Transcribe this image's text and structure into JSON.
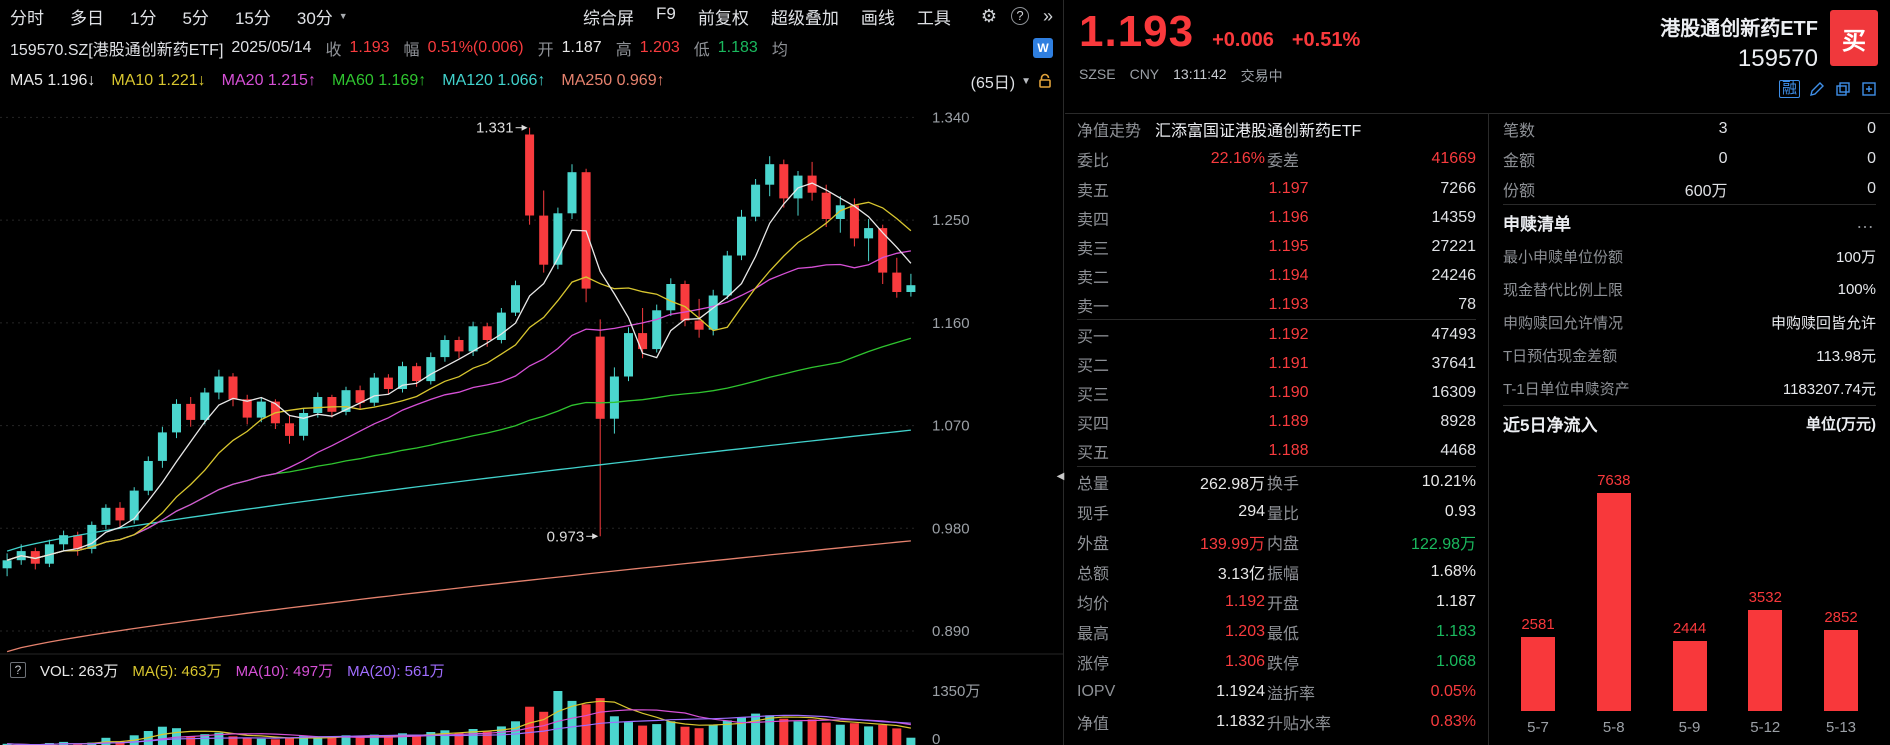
{
  "palette": {
    "bg": "#000000",
    "red": "#f83b3e",
    "green": "#1ab95e",
    "white": "#e8e8e8",
    "gray": "#8e9196",
    "yellow": "#d8c62f",
    "magenta": "#d650d6",
    "ma60": "#2fc42f",
    "cyan": "#41d2cc",
    "salmon": "#e5826e",
    "purple": "#a06dff",
    "blue": "#3f8fe8",
    "orange": "#e2a33b",
    "up": "#4bd6ce",
    "down": "#f83b3e",
    "divider": "#2a2a2a"
  },
  "icons": {
    "gear": "⚙",
    "help": "?",
    "more": "»",
    "caret": "▼",
    "caret_down": "▼",
    "dots": "…",
    "wp": "W",
    "collapse": "◀"
  },
  "toolbar": {
    "period_tabs": [
      "分时",
      "多日",
      "1分",
      "5分",
      "15分",
      "30分"
    ],
    "menu_items": [
      "综合屏",
      "F9",
      "前复权",
      "超级叠加",
      "画线",
      "工具"
    ]
  },
  "stock_line": {
    "symbol": "159570.SZ[港股通创新药ETF]",
    "date": "2025/05/14",
    "fields": [
      {
        "label": "收",
        "value": "1.193",
        "color": "red"
      },
      {
        "label": "幅",
        "value": "0.51%(0.006)",
        "color": "red"
      },
      {
        "label": "开",
        "value": "1.187",
        "color": "white"
      },
      {
        "label": "高",
        "value": "1.203",
        "color": "red"
      },
      {
        "label": "低",
        "value": "1.183",
        "color": "green"
      },
      {
        "label": "均",
        "value": "",
        "color": "gray"
      }
    ]
  },
  "ma_legend": {
    "period_label": "(65日)",
    "items": [
      {
        "label": "MA5",
        "value": "1.196",
        "arrow": "↓",
        "color": "white"
      },
      {
        "label": "MA10",
        "value": "1.221",
        "arrow": "↓",
        "color": "yellow"
      },
      {
        "label": "MA20",
        "value": "1.215",
        "arrow": "↑",
        "color": "magenta"
      },
      {
        "label": "MA60",
        "value": "1.169",
        "arrow": "↑",
        "color": "ma60"
      },
      {
        "label": "MA120",
        "value": "1.066",
        "arrow": "↑",
        "color": "cyan"
      },
      {
        "label": "MA250",
        "value": "0.969",
        "arrow": "↑",
        "color": "salmon"
      }
    ]
  },
  "vol_legend": {
    "help_icon": "?",
    "items": [
      {
        "label": "VOL:",
        "value": "263万",
        "color": "white"
      },
      {
        "label": "MA(5):",
        "value": "463万",
        "color": "yellow"
      },
      {
        "label": "MA(10):",
        "value": "497万",
        "color": "magenta"
      },
      {
        "label": "MA(20):",
        "value": "561万",
        "color": "purple"
      }
    ]
  },
  "quote_header": {
    "price": "1.193",
    "change": "+0.006",
    "change_pct": "+0.51%",
    "exchange": "SZSE",
    "currency": "CNY",
    "time": "13:11:42",
    "status": "交易中",
    "name": "港股通创新药ETF",
    "code": "159570",
    "buy_label": "买",
    "margin_label": "融"
  },
  "order_book": {
    "nav_label": "净值走势",
    "fund_name": "汇添富国证港股通创新药ETF",
    "weibi_label": "委比",
    "weibi_value": "22.16%",
    "weicha_label": "委差",
    "weicha_value": "41669",
    "sells": [
      {
        "label": "卖五",
        "price": "1.197",
        "qty": "7266"
      },
      {
        "label": "卖四",
        "price": "1.196",
        "qty": "14359"
      },
      {
        "label": "卖三",
        "price": "1.195",
        "qty": "27221"
      },
      {
        "label": "卖二",
        "price": "1.194",
        "qty": "24246"
      },
      {
        "label": "卖一",
        "price": "1.193",
        "qty": "78"
      }
    ],
    "buys": [
      {
        "label": "买一",
        "price": "1.192",
        "qty": "47493"
      },
      {
        "label": "买二",
        "price": "1.191",
        "qty": "37641"
      },
      {
        "label": "买三",
        "price": "1.190",
        "qty": "16309"
      },
      {
        "label": "买四",
        "price": "1.189",
        "qty": "8928"
      },
      {
        "label": "买五",
        "price": "1.188",
        "qty": "4468"
      }
    ]
  },
  "stats": [
    {
      "l1": "总量",
      "v1": "262.98万",
      "c1": "white",
      "l2": "换手",
      "v2": "10.21%",
      "c2": "white"
    },
    {
      "l1": "现手",
      "v1": "294",
      "c1": "white",
      "l2": "量比",
      "v2": "0.93",
      "c2": "white"
    },
    {
      "l1": "外盘",
      "v1": "139.99万",
      "c1": "red",
      "l2": "内盘",
      "v2": "122.98万",
      "c2": "green"
    },
    {
      "l1": "总额",
      "v1": "3.13亿",
      "c1": "white",
      "l2": "振幅",
      "v2": "1.68%",
      "c2": "white"
    },
    {
      "l1": "均价",
      "v1": "1.192",
      "c1": "red",
      "l2": "开盘",
      "v2": "1.187",
      "c2": "white"
    },
    {
      "l1": "最高",
      "v1": "1.203",
      "c1": "red",
      "l2": "最低",
      "v2": "1.183",
      "c2": "green"
    },
    {
      "l1": "涨停",
      "v1": "1.306",
      "c1": "red",
      "l2": "跌停",
      "v2": "1.068",
      "c2": "green"
    },
    {
      "l1": "IOPV",
      "v1": "1.1924",
      "c1": "white",
      "l2": "溢折率",
      "v2": "0.05%",
      "c2": "red"
    },
    {
      "l1": "净值",
      "v1": "1.1832",
      "c1": "white",
      "l2": "升贴水率",
      "v2": "0.83%",
      "c2": "red"
    }
  ],
  "etf_panel": {
    "counts": [
      {
        "label": "笔数",
        "v1": "3",
        "v2": "0"
      },
      {
        "label": "金额",
        "v1": "0",
        "v2": "0"
      },
      {
        "label": "份额",
        "v1": "600万",
        "v2": "0"
      }
    ],
    "redeem": {
      "title": "申赎清单",
      "more": "…",
      "rows": [
        {
          "label": "最小申赎单位份额",
          "value": "100万"
        },
        {
          "label": "现金替代比例上限",
          "value": "100%"
        },
        {
          "label": "申购赎回允许情况",
          "value": "申购赎回皆允许"
        },
        {
          "label": "T日预估现金差额",
          "value": "113.98元"
        },
        {
          "label": "T-1日单位申赎资产",
          "value": "1183207.74元"
        }
      ]
    },
    "flow_title": "近5日净流入",
    "flow_unit": "单位(万元)"
  },
  "chart_data": [
    {
      "type": "candlestick",
      "title": "159570.SZ 港股通创新药ETF 日K (65日)",
      "visible_days": 65,
      "y_ticks": [
        "1.340",
        "1.250",
        "1.160",
        "1.070",
        "0.980",
        "0.890"
      ],
      "y_range": [
        0.869,
        1.357
      ],
      "annotations": [
        {
          "index": 37,
          "price": 1.331,
          "label": "1.331"
        },
        {
          "index": 42,
          "price": 0.973,
          "label": "0.973"
        }
      ],
      "overlays": {
        "ma120": {
          "start": 0.96,
          "end": 1.066
        },
        "ma250": {
          "start": 0.872,
          "end": 0.969
        }
      },
      "candles": [
        [
          0.945,
          0.958,
          0.938,
          0.952
        ],
        [
          0.952,
          0.966,
          0.948,
          0.96
        ],
        [
          0.96,
          0.963,
          0.944,
          0.949
        ],
        [
          0.949,
          0.97,
          0.946,
          0.966
        ],
        [
          0.966,
          0.978,
          0.96,
          0.974
        ],
        [
          0.974,
          0.977,
          0.956,
          0.962
        ],
        [
          0.962,
          0.986,
          0.958,
          0.983
        ],
        [
          0.983,
          1.001,
          0.979,
          0.998
        ],
        [
          0.998,
          1.003,
          0.981,
          0.987
        ],
        [
          0.987,
          1.016,
          0.984,
          1.013
        ],
        [
          1.013,
          1.043,
          1.009,
          1.039
        ],
        [
          1.039,
          1.069,
          1.033,
          1.064
        ],
        [
          1.064,
          1.093,
          1.059,
          1.089
        ],
        [
          1.089,
          1.095,
          1.069,
          1.075
        ],
        [
          1.075,
          1.103,
          1.071,
          1.099
        ],
        [
          1.099,
          1.119,
          1.093,
          1.113
        ],
        [
          1.113,
          1.116,
          1.087,
          1.093
        ],
        [
          1.093,
          1.097,
          1.071,
          1.077
        ],
        [
          1.077,
          1.095,
          1.073,
          1.091
        ],
        [
          1.091,
          1.093,
          1.067,
          1.072
        ],
        [
          1.072,
          1.079,
          1.054,
          1.061
        ],
        [
          1.061,
          1.085,
          1.057,
          1.081
        ],
        [
          1.081,
          1.099,
          1.077,
          1.095
        ],
        [
          1.095,
          1.097,
          1.077,
          1.082
        ],
        [
          1.082,
          1.104,
          1.079,
          1.101
        ],
        [
          1.101,
          1.105,
          1.085,
          1.09
        ],
        [
          1.09,
          1.116,
          1.087,
          1.112
        ],
        [
          1.112,
          1.115,
          1.097,
          1.102
        ],
        [
          1.102,
          1.126,
          1.099,
          1.122
        ],
        [
          1.122,
          1.125,
          1.104,
          1.109
        ],
        [
          1.109,
          1.134,
          1.106,
          1.13
        ],
        [
          1.13,
          1.149,
          1.126,
          1.145
        ],
        [
          1.145,
          1.148,
          1.129,
          1.135
        ],
        [
          1.135,
          1.161,
          1.131,
          1.157
        ],
        [
          1.157,
          1.16,
          1.139,
          1.145
        ],
        [
          1.145,
          1.173,
          1.142,
          1.169
        ],
        [
          1.169,
          1.197,
          1.166,
          1.193
        ],
        [
          1.325,
          1.331,
          1.246,
          1.254
        ],
        [
          1.254,
          1.276,
          1.204,
          1.211
        ],
        [
          1.211,
          1.261,
          1.207,
          1.256
        ],
        [
          1.256,
          1.299,
          1.251,
          1.292
        ],
        [
          1.292,
          1.295,
          1.178,
          1.19
        ],
        [
          1.148,
          1.163,
          0.973,
          1.076
        ],
        [
          1.076,
          1.121,
          1.063,
          1.113
        ],
        [
          1.113,
          1.156,
          1.109,
          1.151
        ],
        [
          1.151,
          1.173,
          1.129,
          1.137
        ],
        [
          1.137,
          1.176,
          1.134,
          1.171
        ],
        [
          1.171,
          1.199,
          1.166,
          1.194
        ],
        [
          1.194,
          1.197,
          1.157,
          1.162
        ],
        [
          1.162,
          1.181,
          1.147,
          1.154
        ],
        [
          1.154,
          1.189,
          1.149,
          1.184
        ],
        [
          1.184,
          1.223,
          1.181,
          1.219
        ],
        [
          1.219,
          1.259,
          1.215,
          1.253
        ],
        [
          1.253,
          1.286,
          1.249,
          1.281
        ],
        [
          1.281,
          1.306,
          1.271,
          1.299
        ],
        [
          1.299,
          1.303,
          1.261,
          1.269
        ],
        [
          1.269,
          1.293,
          1.254,
          1.289
        ],
        [
          1.289,
          1.301,
          1.267,
          1.274
        ],
        [
          1.274,
          1.281,
          1.244,
          1.251
        ],
        [
          1.251,
          1.271,
          1.239,
          1.263
        ],
        [
          1.263,
          1.269,
          1.227,
          1.234
        ],
        [
          1.234,
          1.251,
          1.214,
          1.243
        ],
        [
          1.243,
          1.246,
          1.194,
          1.204
        ],
        [
          1.204,
          1.217,
          1.182,
          1.187
        ],
        [
          1.187,
          1.203,
          1.183,
          1.193
        ]
      ],
      "volumes": [
        120,
        95,
        82,
        140,
        165,
        112,
        150,
        260,
        180,
        320,
        420,
        520,
        485,
        300,
        345,
        380,
        295,
        262,
        240,
        225,
        260,
        300,
        255,
        280,
        320,
        270,
        335,
        285,
        365,
        310,
        395,
        435,
        385,
        465,
        405,
        525,
        645,
        985,
        865,
        1350,
        1120,
        1040,
        1185,
        760,
        625,
        545,
        580,
        645,
        520,
        485,
        560,
        665,
        745,
        825,
        785,
        705,
        645,
        690,
        615,
        565,
        600,
        525,
        560,
        480,
        263
      ],
      "vol_axis": {
        "max_label": "1350万",
        "min_label": "0",
        "max": 1350
      }
    },
    {
      "type": "bar",
      "title": "近5日净流入",
      "unit": "万元",
      "categories": [
        "5-7",
        "5-8",
        "5-9",
        "5-12",
        "5-13"
      ],
      "values": [
        2581,
        7638,
        2444,
        3532,
        2852
      ],
      "bar_color": "#f8383b"
    }
  ]
}
